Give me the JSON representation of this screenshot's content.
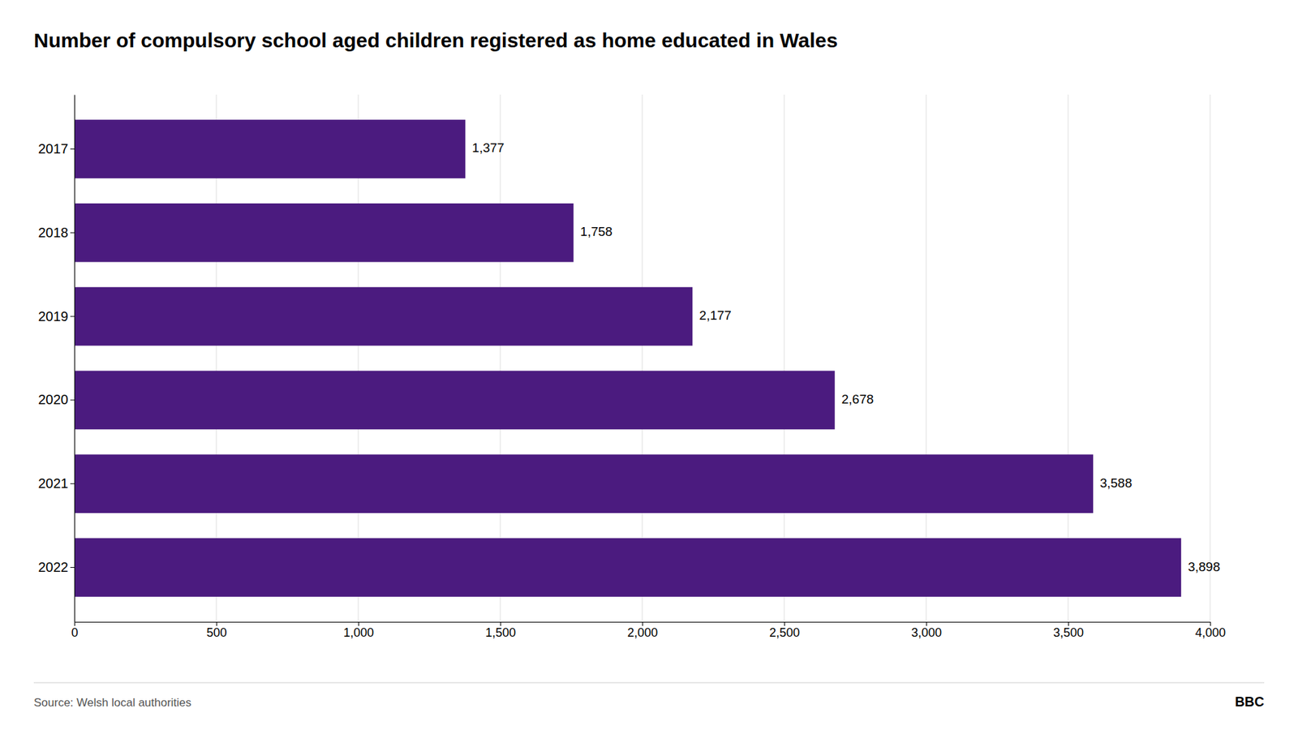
{
  "chart_data": {
    "type": "bar",
    "orientation": "horizontal",
    "title": "Number of compulsory school aged children registered as home educated in Wales",
    "categories": [
      "2017",
      "2018",
      "2019",
      "2020",
      "2021",
      "2022"
    ],
    "values": [
      1377,
      1758,
      2177,
      2678,
      3588,
      3898
    ],
    "value_labels": [
      "1,377",
      "1,758",
      "2,177",
      "2,678",
      "3,588",
      "3,898"
    ],
    "data_labels": true,
    "color": "#4b1b7f",
    "xlim": [
      0,
      4000
    ],
    "xticks": [
      0,
      500,
      {
        "value": 1000,
        "label": "1,000"
      },
      {
        "value": 1500,
        "label": "1,500"
      },
      {
        "value": 2000,
        "label": "2,000"
      },
      {
        "value": 2500,
        "label": "2,500"
      },
      {
        "value": 3000,
        "label": "3,000"
      },
      {
        "value": 3500,
        "label": "3,500"
      },
      {
        "value": 4000,
        "label": "4,000"
      }
    ],
    "grid": true,
    "annotations": [
      "Source: Welsh local authorities",
      "BBC"
    ]
  }
}
